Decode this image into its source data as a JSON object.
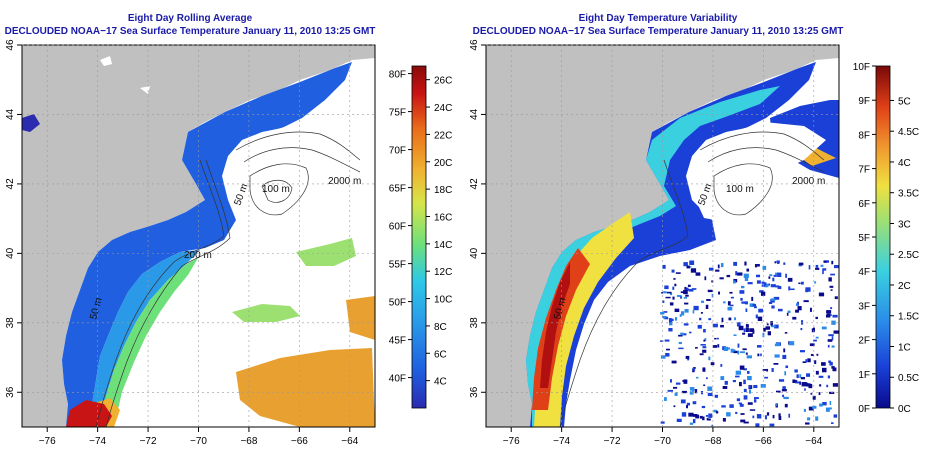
{
  "left_panel": {
    "title": "Eight Day Rolling Average",
    "subtitle": "DECLOUDED NOAA−17 Sea Surface Temperature January 11, 2010 13:25 GMT",
    "colorbar_f_labels": [
      "80F",
      "75F",
      "70F",
      "65F",
      "60F",
      "55F",
      "50F",
      "45F",
      "40F"
    ],
    "colorbar_c_labels": [
      "26C",
      "24C",
      "22C",
      "20C",
      "18C",
      "16C",
      "14C",
      "12C",
      "10C",
      "8C",
      "6C",
      "4C"
    ],
    "contour_labels": [
      "100 m",
      "2000 m",
      "50 m",
      "200 m",
      "50 m"
    ]
  },
  "right_panel": {
    "title": "Eight Day Temperature Variability",
    "subtitle": "DECLOUDED NOAA−17 Sea Surface Temperature January 11, 2010 13:25 GMT",
    "colorbar_f_labels": [
      "10F",
      "9F",
      "8F",
      "7F",
      "6F",
      "5F",
      "4F",
      "3F",
      "2F",
      "1F",
      "0F"
    ],
    "colorbar_c_labels": [
      "5C",
      "4.5C",
      "4C",
      "3.5C",
      "3C",
      "2.5C",
      "2C",
      "1.5C",
      "1C",
      "0.5C",
      "0C"
    ],
    "contour_labels": [
      "100 m",
      "2000 m",
      "50 m",
      "50 m"
    ]
  },
  "axes": {
    "lat_ticks": [
      "46",
      "44",
      "42",
      "40",
      "38",
      "36"
    ],
    "lon_ticks": [
      "−76",
      "−74",
      "−72",
      "−70",
      "−68",
      "−66",
      "−64"
    ]
  },
  "colors": {
    "title": "#1a1aa8",
    "land": "#c0c0c0",
    "sst_scale": [
      "#2b2bb0",
      "#1f5fe0",
      "#2a9ae8",
      "#2ec8e8",
      "#6ee07a",
      "#d8e44a",
      "#f0b030",
      "#e86a1a",
      "#c81414",
      "#8a0a0a"
    ],
    "var_scale": [
      "#0a0a8c",
      "#1a40d8",
      "#2a8ae8",
      "#3ad0e0",
      "#a0e070",
      "#f0e040",
      "#f09a30",
      "#e04018",
      "#b01010",
      "#7a0808"
    ]
  },
  "chart_data": [
    {
      "type": "heatmap",
      "title": "Eight Day Rolling Average",
      "subtitle": "DECLOUDED NOAA−17 Sea Surface Temperature January 11, 2010 13:25 GMT",
      "x_range": [
        -77,
        -63
      ],
      "y_range": [
        35,
        46
      ],
      "x_ticks": [
        -76,
        -74,
        -72,
        -70,
        -68,
        -66,
        -64
      ],
      "y_ticks": [
        36,
        38,
        40,
        42,
        44,
        46
      ],
      "colorbar_c_range": [
        2,
        27
      ],
      "colorbar_f_range": [
        36,
        81
      ],
      "colorbar_c_ticks": [
        4,
        6,
        8,
        10,
        12,
        14,
        16,
        18,
        20,
        22,
        24,
        26
      ],
      "colorbar_f_ticks": [
        40,
        45,
        50,
        55,
        60,
        65,
        70,
        75,
        80
      ],
      "grid": true
    },
    {
      "type": "heatmap",
      "title": "Eight Day Temperature Variability",
      "subtitle": "DECLOUDED NOAA−17 Sea Surface Temperature January 11, 2010 13:25 GMT",
      "x_range": [
        -77,
        -63
      ],
      "y_range": [
        35,
        46
      ],
      "x_ticks": [
        -76,
        -74,
        -72,
        -70,
        -68,
        -66,
        -64
      ],
      "y_ticks": [
        36,
        38,
        40,
        42,
        44,
        46
      ],
      "colorbar_c_range": [
        0,
        5.56
      ],
      "colorbar_f_range": [
        0,
        10
      ],
      "colorbar_c_ticks": [
        0,
        0.5,
        1,
        1.5,
        2,
        2.5,
        3,
        3.5,
        4,
        4.5,
        5
      ],
      "colorbar_f_ticks": [
        0,
        1,
        2,
        3,
        4,
        5,
        6,
        7,
        8,
        9,
        10
      ],
      "grid": true
    }
  ]
}
